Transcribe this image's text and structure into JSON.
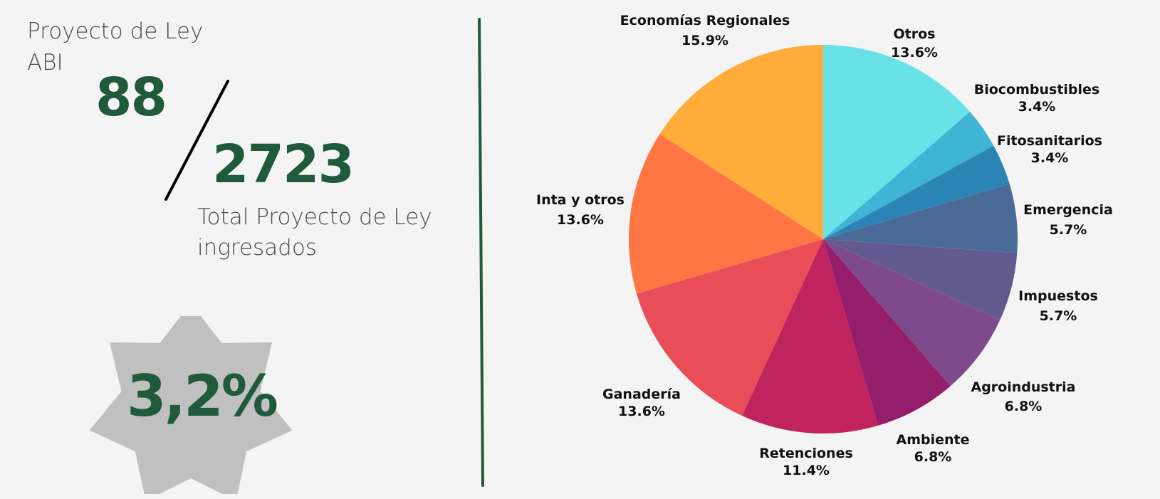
{
  "left_panel": {
    "title_line1": "Proyecto de Ley",
    "title_line2": "ABI",
    "abi_count": "88",
    "total_count": "2723",
    "subtitle_line1": "Total Proyecto de Ley",
    "subtitle_line2": "ingresados",
    "percentage": "3,2%"
  },
  "colors": {
    "accent_green": "#1f5a3a",
    "star_fill": "#c0c0c0"
  },
  "chart_data": {
    "type": "pie",
    "slices": [
      {
        "label": "Otros",
        "value": 13.6,
        "value_label": "13.6%",
        "color": "#68e2e6"
      },
      {
        "label": "Biocombustibles",
        "value": 3.4,
        "value_label": "3.4%",
        "color": "#3fb4d4"
      },
      {
        "label": "Fitosanitarios",
        "value": 3.4,
        "value_label": "3.4%",
        "color": "#2a85b6"
      },
      {
        "label": "Emergencia",
        "value": 5.7,
        "value_label": "5.7%",
        "color": "#4a6a98"
      },
      {
        "label": "Impuestos",
        "value": 5.7,
        "value_label": "5.7%",
        "color": "#625a8e"
      },
      {
        "label": "Agroindustria",
        "value": 6.8,
        "value_label": "6.8%",
        "color": "#7e4a8c"
      },
      {
        "label": "Ambiente",
        "value": 6.8,
        "value_label": "6.8%",
        "color": "#951e6c"
      },
      {
        "label": "Retenciones",
        "value": 11.4,
        "value_label": "11.4%",
        "color": "#c0235d"
      },
      {
        "label": "Ganadería",
        "value": 13.6,
        "value_label": "13.6%",
        "color": "#e84d58"
      },
      {
        "label": "Inta y otros",
        "value": 13.6,
        "value_label": "13.6%",
        "color": "#ff7544"
      },
      {
        "label": "Economías Regionales",
        "value": 15.9,
        "value_label": "15.9%",
        "color": "#ffac3a"
      }
    ]
  }
}
